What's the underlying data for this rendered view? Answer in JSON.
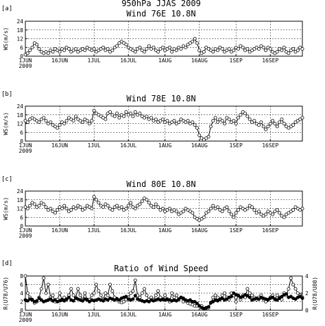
{
  "figure": {
    "title": "950hPa JJAS 2009"
  },
  "x_ticks": [
    "1JUN",
    "16JUN",
    "1JUL",
    "16JUL",
    "1AUG",
    "16AUG",
    "1SEP",
    "16SEP"
  ],
  "x_tick_days": [
    0,
    15,
    30,
    45,
    61,
    76,
    92,
    107
  ],
  "year_label": "2009",
  "chart_data": [
    {
      "type": "line",
      "panel_label": "[a]",
      "title": "Wind 76E 10.8N",
      "ylabel": "WS(m/s)",
      "xlim": [
        0,
        121
      ],
      "ylim": [
        0,
        24
      ],
      "yticks": [
        0,
        6,
        12,
        18,
        24
      ],
      "grid": true,
      "x": [
        0,
        1,
        2,
        3,
        4,
        5,
        6,
        7,
        8,
        9,
        10,
        11,
        12,
        13,
        14,
        15,
        16,
        17,
        18,
        19,
        20,
        21,
        22,
        23,
        24,
        25,
        26,
        27,
        28,
        29,
        30,
        31,
        32,
        33,
        34,
        35,
        36,
        37,
        38,
        39,
        40,
        41,
        42,
        43,
        44,
        45,
        46,
        47,
        48,
        49,
        50,
        51,
        52,
        53,
        54,
        55,
        56,
        57,
        58,
        59,
        60,
        61,
        62,
        63,
        64,
        65,
        66,
        67,
        68,
        69,
        70,
        71,
        72,
        73,
        74,
        75,
        76,
        77,
        78,
        79,
        80,
        81,
        82,
        83,
        84,
        85,
        86,
        87,
        88,
        89,
        90,
        91,
        92,
        93,
        94,
        95,
        96,
        97,
        98,
        99,
        100,
        101,
        102,
        103,
        104,
        105,
        106,
        107,
        108,
        109,
        110,
        111,
        112,
        113,
        114,
        115,
        116,
        117,
        118,
        119,
        120,
        121
      ],
      "series": [
        {
          "values": [
            1,
            2,
            4,
            6,
            9,
            8,
            5,
            3,
            2,
            3,
            2,
            4,
            3,
            5,
            4,
            3,
            5,
            4,
            6,
            5,
            3,
            4,
            5,
            3,
            4,
            5,
            4,
            6,
            5,
            4,
            5,
            3,
            4,
            5,
            6,
            4,
            5,
            3,
            4,
            6,
            7,
            9,
            10,
            9,
            8,
            6,
            5,
            4,
            3,
            5,
            6,
            4,
            3,
            5,
            7,
            5,
            6,
            4,
            3,
            5,
            6,
            4,
            5,
            6,
            3,
            5,
            4,
            6,
            5,
            7,
            6,
            8,
            9,
            10,
            12,
            9,
            4,
            2,
            3,
            6,
            5,
            4,
            3,
            5,
            4,
            6,
            5,
            3,
            4,
            5,
            3,
            4,
            6,
            5,
            7,
            6,
            4,
            5,
            3,
            4,
            5,
            6,
            5,
            7,
            6,
            4,
            6,
            5,
            3,
            2,
            3,
            5,
            4,
            6,
            3,
            2,
            4,
            5,
            3,
            4,
            6,
            5
          ]
        }
      ]
    },
    {
      "type": "line",
      "panel_label": "[b]",
      "title": "Wind 78E 10.8N",
      "ylabel": "WS(m/s)",
      "xlim": [
        0,
        121
      ],
      "ylim": [
        0,
        24
      ],
      "yticks": [
        0,
        6,
        12,
        18,
        24
      ],
      "grid": true,
      "x": [
        0,
        1,
        2,
        3,
        4,
        5,
        6,
        7,
        8,
        9,
        10,
        11,
        12,
        13,
        14,
        15,
        16,
        17,
        18,
        19,
        20,
        21,
        22,
        23,
        24,
        25,
        26,
        27,
        28,
        29,
        30,
        31,
        32,
        33,
        34,
        35,
        36,
        37,
        38,
        39,
        40,
        41,
        42,
        43,
        44,
        45,
        46,
        47,
        48,
        49,
        50,
        51,
        52,
        53,
        54,
        55,
        56,
        57,
        58,
        59,
        60,
        61,
        62,
        63,
        64,
        65,
        66,
        67,
        68,
        69,
        70,
        71,
        72,
        73,
        74,
        75,
        76,
        77,
        78,
        79,
        80,
        81,
        82,
        83,
        84,
        85,
        86,
        87,
        88,
        89,
        90,
        91,
        92,
        93,
        94,
        95,
        96,
        97,
        98,
        99,
        100,
        101,
        102,
        103,
        104,
        105,
        106,
        107,
        108,
        109,
        110,
        111,
        112,
        113,
        114,
        115,
        116,
        117,
        118,
        119,
        120,
        121
      ],
      "series": [
        {
          "values": [
            14,
            13,
            15,
            16,
            15,
            14,
            13,
            15,
            16,
            14,
            12,
            13,
            11,
            10,
            9,
            11,
            13,
            12,
            14,
            16,
            15,
            14,
            17,
            15,
            14,
            13,
            15,
            14,
            12,
            14,
            21,
            19,
            18,
            17,
            16,
            15,
            19,
            20,
            18,
            17,
            19,
            16,
            18,
            17,
            20,
            18,
            19,
            17,
            20,
            18,
            19,
            17,
            16,
            17,
            15,
            16,
            14,
            15,
            13,
            14,
            15,
            13,
            14,
            12,
            13,
            14,
            12,
            13,
            15,
            14,
            13,
            14,
            12,
            13,
            11,
            9,
            4,
            2,
            1,
            2,
            3,
            10,
            14,
            16,
            13,
            15,
            14,
            12,
            16,
            15,
            13,
            14,
            12,
            16,
            18,
            20,
            19,
            17,
            15,
            13,
            14,
            12,
            11,
            13,
            10,
            8,
            10,
            12,
            14,
            12,
            10,
            13,
            15,
            12,
            10,
            9,
            10,
            11,
            13,
            14,
            15,
            16
          ]
        }
      ]
    },
    {
      "type": "line",
      "panel_label": "[c]",
      "title": "Wind 80E 10.8N",
      "ylabel": "WS(m/s)",
      "xlim": [
        0,
        121
      ],
      "ylim": [
        0,
        24
      ],
      "yticks": [
        0,
        6,
        12,
        18,
        24
      ],
      "grid": true,
      "x": [
        0,
        1,
        2,
        3,
        4,
        5,
        6,
        7,
        8,
        9,
        10,
        11,
        12,
        13,
        14,
        15,
        16,
        17,
        18,
        19,
        20,
        21,
        22,
        23,
        24,
        25,
        26,
        27,
        28,
        29,
        30,
        31,
        32,
        33,
        34,
        35,
        36,
        37,
        38,
        39,
        40,
        41,
        42,
        43,
        44,
        45,
        46,
        47,
        48,
        49,
        50,
        51,
        52,
        53,
        54,
        55,
        56,
        57,
        58,
        59,
        60,
        61,
        62,
        63,
        64,
        65,
        66,
        67,
        68,
        69,
        70,
        71,
        72,
        73,
        74,
        75,
        76,
        77,
        78,
        79,
        80,
        81,
        82,
        83,
        84,
        85,
        86,
        87,
        88,
        89,
        90,
        91,
        92,
        93,
        94,
        95,
        96,
        97,
        98,
        99,
        100,
        101,
        102,
        103,
        104,
        105,
        106,
        107,
        108,
        109,
        110,
        111,
        112,
        113,
        114,
        115,
        116,
        117,
        118,
        119,
        120,
        121
      ],
      "series": [
        {
          "values": [
            13,
            12,
            14,
            16,
            15,
            13,
            14,
            16,
            15,
            13,
            11,
            12,
            10,
            9,
            11,
            13,
            12,
            14,
            12,
            10,
            11,
            13,
            12,
            14,
            13,
            11,
            12,
            14,
            13,
            12,
            20,
            18,
            16,
            14,
            13,
            15,
            14,
            12,
            11,
            13,
            14,
            12,
            13,
            11,
            12,
            14,
            16,
            13,
            12,
            14,
            15,
            17,
            19,
            18,
            16,
            14,
            13,
            15,
            13,
            11,
            12,
            10,
            11,
            12,
            10,
            11,
            10,
            8,
            9,
            10,
            12,
            11,
            10,
            9,
            6,
            5,
            4,
            5,
            6,
            9,
            10,
            12,
            14,
            12,
            13,
            11,
            10,
            12,
            13,
            10,
            8,
            6,
            9,
            11,
            13,
            12,
            11,
            12,
            14,
            13,
            11,
            9,
            10,
            8,
            7,
            8,
            10,
            9,
            8,
            10,
            11,
            9,
            7,
            6,
            8,
            9,
            10,
            11,
            13,
            12,
            11,
            12
          ]
        }
      ]
    },
    {
      "type": "line",
      "panel_label": "[d]",
      "title": "Ratio of Wind Speed",
      "ylabel": "R(U78/U76)",
      "ylabel_right": "R(U78/U80)",
      "xlim": [
        0,
        121
      ],
      "ylim": [
        0,
        8
      ],
      "yticks": [
        0,
        2,
        4,
        6,
        8
      ],
      "ylim_right": [
        0,
        4
      ],
      "yticks_right": [
        0,
        2,
        4
      ],
      "grid": true,
      "x": [
        0,
        1,
        2,
        3,
        4,
        5,
        6,
        7,
        8,
        9,
        10,
        11,
        12,
        13,
        14,
        15,
        16,
        17,
        18,
        19,
        20,
        21,
        22,
        23,
        24,
        25,
        26,
        27,
        28,
        29,
        30,
        31,
        32,
        33,
        34,
        35,
        36,
        37,
        38,
        39,
        40,
        41,
        42,
        43,
        44,
        45,
        46,
        47,
        48,
        49,
        50,
        51,
        52,
        53,
        54,
        55,
        56,
        57,
        58,
        59,
        60,
        61,
        62,
        63,
        64,
        65,
        66,
        67,
        68,
        69,
        70,
        71,
        72,
        73,
        74,
        75,
        76,
        77,
        78,
        79,
        80,
        81,
        82,
        83,
        84,
        85,
        86,
        87,
        88,
        89,
        90,
        91,
        92,
        93,
        94,
        95,
        96,
        97,
        98,
        99,
        100,
        101,
        102,
        103,
        104,
        105,
        106,
        107,
        108,
        109,
        110,
        111,
        112,
        113,
        114,
        115,
        116,
        117,
        118,
        119,
        120,
        121
      ],
      "series": [
        {
          "marker": "open",
          "axis": "left",
          "values": [
            8,
            4,
            3,
            2.5,
            1.7,
            2,
            3,
            5,
            7.5,
            4,
            6,
            3,
            3.5,
            2,
            2.5,
            4,
            2.5,
            3,
            2.5,
            3.5,
            5,
            3.5,
            3,
            5,
            3.5,
            2.5,
            4,
            2.5,
            2.5,
            3.5,
            4,
            6,
            4.5,
            3.5,
            2.5,
            4,
            3.5,
            6,
            4.5,
            3,
            2.7,
            2,
            1.8,
            2,
            2.5,
            3,
            4,
            4.5,
            7,
            3.5,
            3,
            4,
            5,
            3.5,
            2.5,
            3,
            2.5,
            3.5,
            4.5,
            3,
            2.5,
            3.5,
            2.5,
            2,
            4,
            3,
            3.5,
            2.5,
            3,
            2,
            2.2,
            1.7,
            1.5,
            1.3,
            1,
            1,
            1,
            1,
            0.3,
            0.5,
            0.6,
            1.7,
            3,
            3.5,
            3,
            2.5,
            3.5,
            4,
            3,
            2.5,
            4,
            3.5,
            2,
            3.5,
            2.5,
            3.5,
            3,
            5,
            4,
            3.5,
            3,
            2.5,
            3,
            3.5,
            2.5,
            2,
            2.5,
            3,
            3.5,
            2.5,
            3.5,
            3,
            2.5,
            4,
            3.5,
            5,
            7.5,
            6,
            5,
            4,
            3.5,
            3
          ]
        },
        {
          "marker": "filled",
          "axis": "right",
          "values": [
            1.2,
            1.1,
            1.3,
            1.2,
            1,
            1.1,
            1.4,
            1.2,
            1,
            1.1,
            1.2,
            1.3,
            1.1,
            1.2,
            1,
            1.1,
            1.2,
            1.1,
            1.3,
            1.5,
            1.2,
            1.1,
            1.4,
            1.3,
            1.2,
            1.1,
            1.3,
            1.2,
            1,
            1.2,
            1.1,
            1.2,
            1.3,
            1.2,
            1.1,
            1.3,
            1.2,
            1.4,
            1.3,
            1.2,
            1.3,
            1.2,
            1.4,
            1.5,
            1.6,
            1.3,
            1.2,
            1.3,
            1.7,
            1.3,
            1.2,
            1.1,
            1,
            1.1,
            1,
            1.2,
            1.1,
            1.2,
            1.3,
            1.2,
            1.3,
            1.2,
            1.3,
            1.2,
            1.1,
            1.2,
            1.1,
            1.3,
            1.5,
            1.4,
            1.2,
            1.1,
            1.2,
            1,
            1,
            0.8,
            0.5,
            0.3,
            0.2,
            0.3,
            0.4,
            0.9,
            1,
            1.2,
            1.1,
            1.3,
            1.4,
            1.2,
            1.3,
            1.5,
            1.6,
            2,
            1.8,
            1.7,
            1.5,
            1.6,
            1.8,
            1.7,
            1.5,
            1.2,
            1.3,
            1.4,
            1.3,
            1.5,
            1.4,
            1.3,
            1.2,
            1.4,
            1.5,
            1.3,
            1.2,
            1.4,
            1.6,
            1.8,
            1.9,
            1.5,
            1.6,
            1.4,
            1.3,
            1.5,
            1.6,
            1.4
          ]
        }
      ]
    }
  ]
}
